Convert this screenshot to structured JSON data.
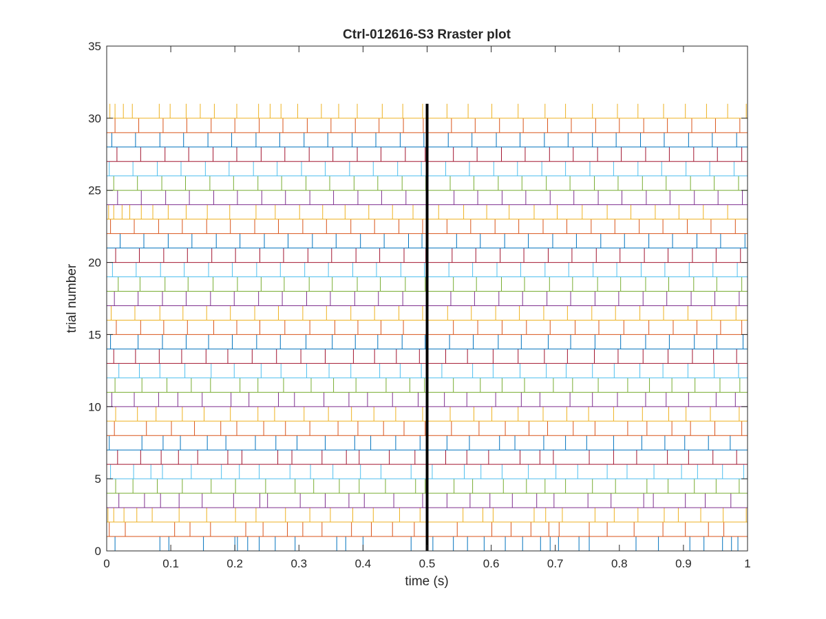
{
  "chart_data": {
    "type": "raster",
    "title": "Ctrl-012616-S3 Rraster plot",
    "xlabel": "time (s)",
    "ylabel": "trial number",
    "xlim": [
      0,
      1
    ],
    "ylim": [
      0,
      35
    ],
    "xticks": [
      0,
      0.1,
      0.2,
      0.3,
      0.4,
      0.5,
      0.6,
      0.7,
      0.8,
      0.9,
      1
    ],
    "xtick_labels": [
      "0",
      "0.1",
      "0.2",
      "0.3",
      "0.4",
      "0.5",
      "0.6",
      "0.7",
      "0.8",
      "0.9",
      "1"
    ],
    "yticks": [
      0,
      5,
      10,
      15,
      20,
      25,
      30,
      35
    ],
    "ytick_labels": [
      "0",
      "5",
      "10",
      "15",
      "20",
      "25",
      "30",
      "35"
    ],
    "grid": false,
    "event_marker": {
      "x": 0.5,
      "y_range": [
        0,
        31
      ],
      "color": "#000000"
    },
    "trial_count": 31,
    "trial_colors": [
      "#0072BD",
      "#D95319",
      "#EDB120",
      "#7E2F8E",
      "#77AC30",
      "#4DBEEE",
      "#A2142F"
    ],
    "trials": [
      {
        "trial": 1,
        "spikes": [
          0.013,
          0.083,
          0.097,
          0.151,
          0.2,
          0.204,
          0.22,
          0.238,
          0.263,
          0.294,
          0.359,
          0.373,
          0.4,
          0.475,
          0.509,
          0.541,
          0.563,
          0.589,
          0.622,
          0.649,
          0.677,
          0.692,
          0.705,
          0.737,
          0.753,
          0.826,
          0.861,
          0.91,
          0.932,
          0.961,
          0.975,
          0.985
        ]
      },
      {
        "trial": 2,
        "spikes": [
          0.004,
          0.029,
          0.106,
          0.13,
          0.162,
          0.217,
          0.244,
          0.282,
          0.306,
          0.336,
          0.382,
          0.413,
          0.446,
          0.48,
          0.547,
          0.601,
          0.631,
          0.662,
          0.69,
          0.706,
          0.753,
          0.781,
          0.823,
          0.868,
          0.903,
          0.939,
          0.963
        ]
      },
      {
        "trial": 3,
        "spikes": [
          0.002,
          0.011,
          0.027,
          0.047,
          0.071,
          0.113,
          0.156,
          0.201,
          0.233,
          0.279,
          0.317,
          0.349,
          0.384,
          0.416,
          0.457,
          0.489,
          0.556,
          0.587,
          0.603,
          0.667,
          0.685,
          0.711,
          0.762,
          0.792,
          0.829,
          0.87,
          0.892,
          0.927,
          0.962,
          0.998
        ]
      },
      {
        "trial": 4,
        "spikes": [
          0.019,
          0.059,
          0.084,
          0.113,
          0.149,
          0.198,
          0.239,
          0.251,
          0.302,
          0.341,
          0.378,
          0.402,
          0.448,
          0.493,
          0.531,
          0.567,
          0.598,
          0.633,
          0.671,
          0.698,
          0.751,
          0.787,
          0.838,
          0.853,
          0.903,
          0.934,
          0.974
        ]
      },
      {
        "trial": 5,
        "spikes": [
          0.014,
          0.041,
          0.079,
          0.118,
          0.163,
          0.201,
          0.248,
          0.294,
          0.323,
          0.363,
          0.394,
          0.435,
          0.482,
          0.497,
          0.542,
          0.571,
          0.619,
          0.655,
          0.684,
          0.716,
          0.758,
          0.794,
          0.843,
          0.876,
          0.917,
          0.951,
          0.987
        ]
      },
      {
        "trial": 6,
        "spikes": [
          0.006,
          0.042,
          0.069,
          0.087,
          0.132,
          0.179,
          0.207,
          0.238,
          0.286,
          0.318,
          0.353,
          0.396,
          0.428,
          0.475,
          0.508,
          0.558,
          0.584,
          0.617,
          0.658,
          0.701,
          0.735,
          0.781,
          0.812,
          0.854,
          0.897,
          0.922,
          0.961,
          0.994
        ]
      },
      {
        "trial": 7,
        "spikes": [
          0.017,
          0.053,
          0.085,
          0.112,
          0.142,
          0.189,
          0.211,
          0.267,
          0.289,
          0.336,
          0.374,
          0.394,
          0.441,
          0.481,
          0.529,
          0.562,
          0.596,
          0.645,
          0.676,
          0.697,
          0.753,
          0.791,
          0.827,
          0.875,
          0.908,
          0.946,
          0.983
        ]
      },
      {
        "trial": 8,
        "spikes": [
          0.004,
          0.055,
          0.088,
          0.115,
          0.157,
          0.186,
          0.232,
          0.264,
          0.297,
          0.341,
          0.387,
          0.412,
          0.451,
          0.489,
          0.531,
          0.566,
          0.613,
          0.637,
          0.682,
          0.716,
          0.749,
          0.791,
          0.835,
          0.871,
          0.902,
          0.939,
          0.973
        ]
      },
      {
        "trial": 9,
        "spikes": [
          0.012,
          0.062,
          0.101,
          0.137,
          0.178,
          0.203,
          0.245,
          0.279,
          0.317,
          0.361,
          0.392,
          0.432,
          0.464,
          0.497,
          0.538,
          0.581,
          0.622,
          0.659,
          0.688,
          0.728,
          0.762,
          0.813,
          0.843,
          0.882,
          0.911,
          0.949,
          0.991
        ]
      },
      {
        "trial": 10,
        "spikes": [
          0.014,
          0.048,
          0.077,
          0.118,
          0.152,
          0.193,
          0.236,
          0.262,
          0.308,
          0.346,
          0.382,
          0.417,
          0.451,
          0.493,
          0.536,
          0.573,
          0.601,
          0.642,
          0.681,
          0.718,
          0.752,
          0.791,
          0.836,
          0.877,
          0.904,
          0.942,
          0.987
        ]
      },
      {
        "trial": 11,
        "spikes": [
          0.008,
          0.043,
          0.081,
          0.111,
          0.149,
          0.194,
          0.222,
          0.268,
          0.293,
          0.339,
          0.378,
          0.407,
          0.446,
          0.486,
          0.527,
          0.562,
          0.607,
          0.647,
          0.676,
          0.723,
          0.758,
          0.797,
          0.841,
          0.873,
          0.908,
          0.951,
          0.981
        ]
      },
      {
        "trial": 12,
        "spikes": [
          0.013,
          0.055,
          0.094,
          0.132,
          0.162,
          0.208,
          0.236,
          0.276,
          0.319,
          0.354,
          0.389,
          0.436,
          0.473,
          0.496,
          0.541,
          0.583,
          0.617,
          0.652,
          0.697,
          0.727,
          0.767,
          0.813,
          0.847,
          0.882,
          0.918,
          0.957,
          0.988
        ]
      },
      {
        "trial": 13,
        "spikes": [
          0.019,
          0.051,
          0.083,
          0.122,
          0.163,
          0.199,
          0.241,
          0.272,
          0.312,
          0.347,
          0.381,
          0.426,
          0.458,
          0.491,
          0.523,
          0.571,
          0.603,
          0.645,
          0.686,
          0.717,
          0.758,
          0.792,
          0.832,
          0.868,
          0.907,
          0.948,
          0.986
        ]
      },
      {
        "trial": 14,
        "spikes": [
          0.011,
          0.045,
          0.082,
          0.117,
          0.155,
          0.189,
          0.227,
          0.265,
          0.303,
          0.341,
          0.385,
          0.418,
          0.452,
          0.488,
          0.529,
          0.563,
          0.603,
          0.642,
          0.683,
          0.719,
          0.761,
          0.798,
          0.837,
          0.876,
          0.914,
          0.947,
          0.983
        ]
      },
      {
        "trial": 15,
        "spikes": [
          0.006,
          0.049,
          0.087,
          0.124,
          0.159,
          0.196,
          0.234,
          0.271,
          0.311,
          0.352,
          0.388,
          0.423,
          0.461,
          0.497,
          0.535,
          0.572,
          0.611,
          0.647,
          0.689,
          0.724,
          0.762,
          0.802,
          0.841,
          0.878,
          0.917,
          0.952,
          0.993
        ]
      },
      {
        "trial": 16,
        "spikes": [
          0.015,
          0.053,
          0.089,
          0.126,
          0.167,
          0.203,
          0.239,
          0.278,
          0.317,
          0.356,
          0.392,
          0.428,
          0.463,
          0.499,
          0.541,
          0.579,
          0.617,
          0.655,
          0.692,
          0.731,
          0.768,
          0.807,
          0.846,
          0.884,
          0.921,
          0.958,
          0.991
        ]
      },
      {
        "trial": 17,
        "spikes": [
          0.007,
          0.044,
          0.083,
          0.119,
          0.156,
          0.193,
          0.231,
          0.268,
          0.306,
          0.343,
          0.381,
          0.418,
          0.456,
          0.493,
          0.532,
          0.569,
          0.607,
          0.644,
          0.682,
          0.719,
          0.757,
          0.794,
          0.832,
          0.869,
          0.907,
          0.944,
          0.982
        ]
      },
      {
        "trial": 18,
        "spikes": [
          0.012,
          0.049,
          0.087,
          0.124,
          0.162,
          0.199,
          0.237,
          0.274,
          0.312,
          0.349,
          0.387,
          0.424,
          0.462,
          0.499,
          0.537,
          0.574,
          0.612,
          0.649,
          0.687,
          0.724,
          0.762,
          0.799,
          0.837,
          0.874,
          0.912,
          0.949,
          0.987
        ]
      },
      {
        "trial": 19,
        "spikes": [
          0.018,
          0.052,
          0.091,
          0.127,
          0.166,
          0.204,
          0.241,
          0.277,
          0.316,
          0.352,
          0.391,
          0.427,
          0.466,
          0.497,
          0.541,
          0.577,
          0.616,
          0.652,
          0.691,
          0.727,
          0.766,
          0.802,
          0.841,
          0.877,
          0.916,
          0.952,
          0.991
        ]
      },
      {
        "trial": 20,
        "spikes": [
          0.009,
          0.046,
          0.084,
          0.121,
          0.159,
          0.196,
          0.234,
          0.271,
          0.309,
          0.346,
          0.384,
          0.421,
          0.459,
          0.496,
          0.534,
          0.571,
          0.609,
          0.646,
          0.684,
          0.721,
          0.759,
          0.796,
          0.834,
          0.871,
          0.909,
          0.946,
          0.984
        ]
      },
      {
        "trial": 21,
        "spikes": [
          0.014,
          0.051,
          0.089,
          0.126,
          0.164,
          0.201,
          0.239,
          0.276,
          0.314,
          0.351,
          0.389,
          0.426,
          0.464,
          0.498,
          0.539,
          0.576,
          0.614,
          0.651,
          0.689,
          0.726,
          0.764,
          0.801,
          0.839,
          0.876,
          0.914,
          0.951,
          0.989
        ]
      },
      {
        "trial": 22,
        "spikes": [
          0.021,
          0.058,
          0.096,
          0.133,
          0.171,
          0.208,
          0.246,
          0.283,
          0.321,
          0.358,
          0.396,
          0.433,
          0.471,
          0.492,
          0.546,
          0.583,
          0.621,
          0.658,
          0.696,
          0.733,
          0.771,
          0.808,
          0.846,
          0.883,
          0.921,
          0.958,
          0.996
        ]
      },
      {
        "trial": 23,
        "spikes": [
          0.006,
          0.043,
          0.081,
          0.118,
          0.156,
          0.193,
          0.231,
          0.268,
          0.306,
          0.343,
          0.381,
          0.418,
          0.456,
          0.493,
          0.531,
          0.568,
          0.606,
          0.643,
          0.681,
          0.718,
          0.756,
          0.793,
          0.831,
          0.868,
          0.906,
          0.943,
          0.981
        ]
      },
      {
        "trial": 24,
        "spikes": [
          0.003,
          0.011,
          0.024,
          0.036,
          0.054,
          0.072,
          0.096,
          0.124,
          0.157,
          0.192,
          0.233,
          0.263,
          0.301,
          0.337,
          0.372,
          0.409,
          0.446,
          0.478,
          0.518,
          0.557,
          0.593,
          0.628,
          0.667,
          0.703,
          0.742,
          0.781,
          0.818,
          0.856,
          0.893,
          0.931,
          0.969
        ]
      },
      {
        "trial": 25,
        "spikes": [
          0.017,
          0.054,
          0.092,
          0.129,
          0.167,
          0.204,
          0.242,
          0.279,
          0.317,
          0.354,
          0.392,
          0.429,
          0.467,
          0.499,
          0.542,
          0.579,
          0.617,
          0.654,
          0.692,
          0.729,
          0.767,
          0.804,
          0.842,
          0.879,
          0.917,
          0.954,
          0.992
        ]
      },
      {
        "trial": 26,
        "spikes": [
          0.011,
          0.048,
          0.086,
          0.123,
          0.161,
          0.198,
          0.236,
          0.273,
          0.311,
          0.348,
          0.386,
          0.423,
          0.461,
          0.498,
          0.536,
          0.573,
          0.611,
          0.648,
          0.686,
          0.723,
          0.761,
          0.798,
          0.836,
          0.873,
          0.911,
          0.948,
          0.986
        ]
      },
      {
        "trial": 27,
        "spikes": [
          0.004,
          0.041,
          0.079,
          0.116,
          0.154,
          0.191,
          0.229,
          0.266,
          0.304,
          0.341,
          0.379,
          0.416,
          0.454,
          0.491,
          0.529,
          0.566,
          0.604,
          0.641,
          0.679,
          0.716,
          0.754,
          0.791,
          0.829,
          0.866,
          0.904,
          0.941,
          0.979
        ]
      },
      {
        "trial": 28,
        "spikes": [
          0.016,
          0.053,
          0.091,
          0.128,
          0.166,
          0.203,
          0.241,
          0.278,
          0.316,
          0.353,
          0.391,
          0.428,
          0.466,
          0.497,
          0.541,
          0.578,
          0.616,
          0.653,
          0.691,
          0.728,
          0.766,
          0.803,
          0.841,
          0.878,
          0.916,
          0.953,
          0.991
        ]
      },
      {
        "trial": 29,
        "spikes": [
          0.008,
          0.045,
          0.083,
          0.12,
          0.158,
          0.195,
          0.233,
          0.27,
          0.308,
          0.345,
          0.383,
          0.42,
          0.458,
          0.495,
          0.533,
          0.57,
          0.608,
          0.645,
          0.683,
          0.72,
          0.758,
          0.795,
          0.833,
          0.87,
          0.908,
          0.945,
          0.983
        ]
      },
      {
        "trial": 30,
        "spikes": [
          0.013,
          0.05,
          0.088,
          0.125,
          0.163,
          0.2,
          0.238,
          0.275,
          0.313,
          0.35,
          0.388,
          0.425,
          0.463,
          0.494,
          0.538,
          0.575,
          0.613,
          0.65,
          0.688,
          0.725,
          0.763,
          0.8,
          0.838,
          0.875,
          0.913,
          0.95,
          0.988
        ]
      },
      {
        "trial": 31,
        "spikes": [
          0.005,
          0.013,
          0.026,
          0.04,
          0.082,
          0.099,
          0.124,
          0.146,
          0.168,
          0.203,
          0.237,
          0.255,
          0.272,
          0.298,
          0.335,
          0.362,
          0.391,
          0.43,
          0.462,
          0.493,
          0.531,
          0.564,
          0.601,
          0.642,
          0.684,
          0.716,
          0.758,
          0.797,
          0.829,
          0.869,
          0.903,
          0.936,
          0.969,
          0.998
        ]
      }
    ]
  }
}
